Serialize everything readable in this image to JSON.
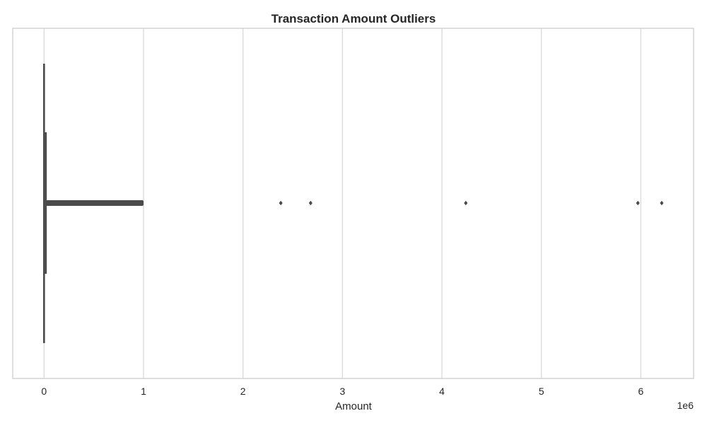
{
  "chart_data": {
    "type": "box",
    "title": "Transaction Amount Outliers",
    "xlabel": "Amount",
    "ylabel": "",
    "x_offset_label": "1e6",
    "x_scale_factor": 1000000,
    "xlim": [
      -315000,
      6530000
    ],
    "xticks": [
      0,
      1000000,
      2000000,
      3000000,
      4000000,
      5000000,
      6000000
    ],
    "xtick_labels": [
      "0",
      "1",
      "2",
      "3",
      "4",
      "5",
      "6"
    ],
    "grid": true,
    "box": {
      "min": 0,
      "q1": 0,
      "median": 0,
      "q3": 20000,
      "whisker_high": 1000000
    },
    "outliers_dense_range": [
      20000,
      1000000
    ],
    "outliers_isolated": [
      2380000,
      2680000,
      4240000,
      5970000,
      6210000
    ],
    "colors": {
      "box_edge": "#4a4a4a",
      "grid": "#d9d9d9",
      "frame": "#cccccc"
    }
  }
}
